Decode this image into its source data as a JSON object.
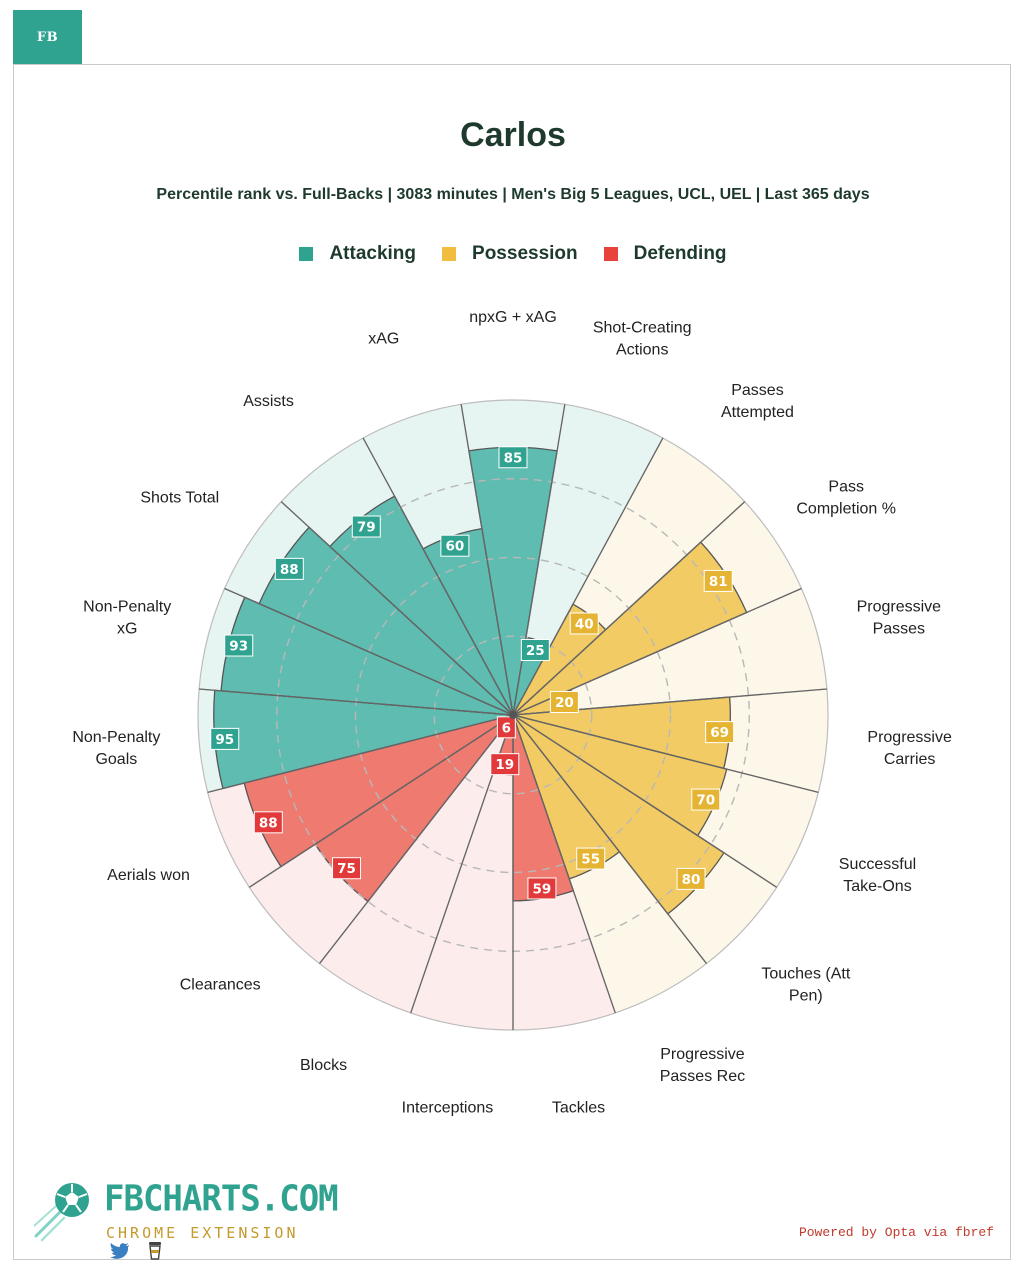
{
  "tab": {
    "label": "FB"
  },
  "header": {
    "title": "Carlos",
    "subtitle": "Percentile rank vs. Full-Backs | 3083 minutes | Men's Big 5 Leagues, UCL, UEL | Last 365 days"
  },
  "legend": [
    {
      "label": "Attacking",
      "color": "#2fa38f"
    },
    {
      "label": "Possession",
      "color": "#f0bd3f"
    },
    {
      "label": "Defending",
      "color": "#e8433a"
    }
  ],
  "colors": {
    "Attacking": {
      "bar": "#5fbcb0",
      "bg": "#e6f4f2",
      "box": "#2fa38f"
    },
    "Possession": {
      "bar": "#f2cb64",
      "bg": "#fdf7e9",
      "box": "#e6b433"
    },
    "Defending": {
      "bar": "#ee7a70",
      "bg": "#fdecec",
      "box": "#e2393a"
    }
  },
  "chart_data": {
    "type": "radar",
    "categories": [
      [
        "npxG + xAG"
      ],
      [
        "Shot-Creating",
        "Actions"
      ],
      [
        "Passes",
        "Attempted"
      ],
      [
        "Pass",
        "Completion %"
      ],
      [
        "Progressive",
        "Passes"
      ],
      [
        "Progressive",
        "Carries"
      ],
      [
        "Successful",
        "Take-Ons"
      ],
      [
        "Touches (Att",
        "Pen)"
      ],
      [
        "Progressive",
        "Passes Rec"
      ],
      [
        "Tackles"
      ],
      [
        "Interceptions"
      ],
      [
        "Blocks"
      ],
      [
        "Clearances"
      ],
      [
        "Aerials won"
      ],
      [
        "Non-Penalty",
        "Goals"
      ],
      [
        "Non-Penalty",
        "xG"
      ],
      [
        "Shots Total"
      ],
      [
        "Assists"
      ],
      [
        "xAG"
      ]
    ],
    "groups": [
      "Attacking",
      "Attacking",
      "Possession",
      "Possession",
      "Possession",
      "Possession",
      "Possession",
      "Possession",
      "Possession",
      "Defending",
      "Defending",
      "Defending",
      "Defending",
      "Defending",
      "Attacking",
      "Attacking",
      "Attacking",
      "Attacking",
      "Attacking"
    ],
    "values": [
      85,
      25,
      40,
      81,
      20,
      69,
      70,
      80,
      55,
      59,
      19,
      6,
      75,
      88,
      95,
      93,
      88,
      79,
      60
    ],
    "value_labels": [
      "85",
      "25",
      "40",
      "81",
      "20",
      "69",
      "70",
      "80",
      "55",
      "59",
      "19",
      "6",
      "75",
      "88",
      "95",
      "93",
      "88",
      "79",
      "60"
    ],
    "range": [
      0,
      100
    ],
    "grid": true
  },
  "branding": {
    "name": "FBCHARTS.COM",
    "sub": "CHROME EXTENSION",
    "powered": "Powered by Opta via fbref"
  }
}
